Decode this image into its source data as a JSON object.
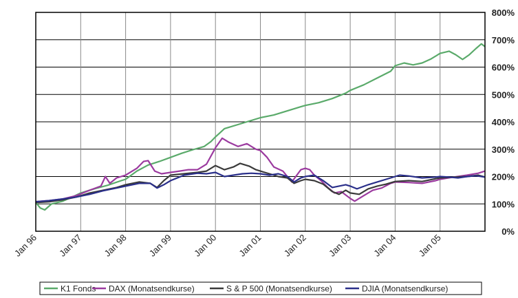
{
  "chart_data": {
    "type": "line",
    "x_labels": [
      "Jan 96",
      "Jan 97",
      "Jan 98",
      "Jan 99",
      "Jan 00",
      "Jan 01",
      "Jan 02",
      "Jan 03",
      "Jan 04",
      "Jan 05"
    ],
    "y_ticks": [
      "0%",
      "100%",
      "200%",
      "300%",
      "400%",
      "500%",
      "600%",
      "700%",
      "800%"
    ],
    "ylim": [
      0,
      800
    ],
    "grid": true,
    "legend_position": "bottom",
    "series": [
      {
        "name": "K1 Fonds",
        "color": "#5aaa6a",
        "points": [
          [
            1996.0,
            105
          ],
          [
            1996.1,
            85
          ],
          [
            1996.2,
            78
          ],
          [
            1996.35,
            100
          ],
          [
            1996.6,
            110
          ],
          [
            1996.85,
            128
          ],
          [
            1997.0,
            140
          ],
          [
            1997.3,
            155
          ],
          [
            1997.6,
            168
          ],
          [
            1997.9,
            185
          ],
          [
            1998.0,
            190
          ],
          [
            1998.25,
            220
          ],
          [
            1998.5,
            242
          ],
          [
            1998.75,
            255
          ],
          [
            1999.0,
            270
          ],
          [
            1999.25,
            285
          ],
          [
            1999.5,
            298
          ],
          [
            1999.75,
            310
          ],
          [
            1999.9,
            328
          ],
          [
            2000.0,
            345
          ],
          [
            2000.2,
            375
          ],
          [
            2000.5,
            390
          ],
          [
            2000.8,
            405
          ],
          [
            2001.0,
            415
          ],
          [
            2001.3,
            425
          ],
          [
            2001.6,
            440
          ],
          [
            2001.9,
            455
          ],
          [
            2002.0,
            460
          ],
          [
            2002.3,
            470
          ],
          [
            2002.6,
            485
          ],
          [
            2002.9,
            505
          ],
          [
            2003.0,
            515
          ],
          [
            2003.3,
            535
          ],
          [
            2003.6,
            560
          ],
          [
            2003.9,
            585
          ],
          [
            2004.0,
            605
          ],
          [
            2004.2,
            615
          ],
          [
            2004.4,
            608
          ],
          [
            2004.6,
            615
          ],
          [
            2004.8,
            630
          ],
          [
            2005.0,
            650
          ],
          [
            2005.2,
            658
          ],
          [
            2005.35,
            645
          ],
          [
            2005.5,
            628
          ],
          [
            2005.65,
            645
          ],
          [
            2005.8,
            668
          ],
          [
            2005.92,
            685
          ],
          [
            2006.0,
            675
          ]
        ]
      },
      {
        "name": "DAX (Monatsendkurse)",
        "color": "#9b3a9f",
        "points": [
          [
            1996.0,
            108
          ],
          [
            1996.3,
            112
          ],
          [
            1996.6,
            118
          ],
          [
            1996.9,
            130
          ],
          [
            1997.2,
            150
          ],
          [
            1997.45,
            165
          ],
          [
            1997.55,
            200
          ],
          [
            1997.65,
            175
          ],
          [
            1997.8,
            195
          ],
          [
            1998.0,
            205
          ],
          [
            1998.25,
            230
          ],
          [
            1998.4,
            255
          ],
          [
            1998.5,
            258
          ],
          [
            1998.65,
            220
          ],
          [
            1998.8,
            210
          ],
          [
            1999.0,
            215
          ],
          [
            1999.2,
            220
          ],
          [
            1999.4,
            225
          ],
          [
            1999.6,
            225
          ],
          [
            1999.8,
            245
          ],
          [
            2000.0,
            305
          ],
          [
            2000.15,
            340
          ],
          [
            2000.3,
            325
          ],
          [
            2000.5,
            310
          ],
          [
            2000.7,
            320
          ],
          [
            2000.9,
            300
          ],
          [
            2001.0,
            295
          ],
          [
            2001.15,
            270
          ],
          [
            2001.3,
            235
          ],
          [
            2001.5,
            220
          ],
          [
            2001.7,
            180
          ],
          [
            2001.9,
            225
          ],
          [
            2002.0,
            230
          ],
          [
            2002.1,
            225
          ],
          [
            2002.2,
            205
          ],
          [
            2002.35,
            185
          ],
          [
            2002.5,
            160
          ],
          [
            2002.65,
            140
          ],
          [
            2002.8,
            145
          ],
          [
            2003.0,
            120
          ],
          [
            2003.1,
            110
          ],
          [
            2003.3,
            130
          ],
          [
            2003.5,
            150
          ],
          [
            2003.7,
            158
          ],
          [
            2003.9,
            175
          ],
          [
            2004.0,
            180
          ],
          [
            2004.3,
            178
          ],
          [
            2004.6,
            175
          ],
          [
            2004.9,
            185
          ],
          [
            2005.0,
            190
          ],
          [
            2005.3,
            198
          ],
          [
            2005.6,
            205
          ],
          [
            2005.85,
            212
          ],
          [
            2006.0,
            220
          ]
        ]
      },
      {
        "name": "S & P 500 (Monatsendkurse)",
        "color": "#3a3a3a",
        "points": [
          [
            1996.0,
            105
          ],
          [
            1996.3,
            108
          ],
          [
            1996.6,
            115
          ],
          [
            1996.9,
            125
          ],
          [
            1997.2,
            140
          ],
          [
            1997.5,
            150
          ],
          [
            1997.8,
            160
          ],
          [
            1998.0,
            170
          ],
          [
            1998.3,
            180
          ],
          [
            1998.55,
            175
          ],
          [
            1998.7,
            160
          ],
          [
            1998.85,
            185
          ],
          [
            1999.0,
            205
          ],
          [
            1999.3,
            210
          ],
          [
            1999.6,
            215
          ],
          [
            1999.8,
            220
          ],
          [
            2000.0,
            240
          ],
          [
            2000.2,
            225
          ],
          [
            2000.4,
            235
          ],
          [
            2000.55,
            248
          ],
          [
            2000.75,
            238
          ],
          [
            2000.9,
            225
          ],
          [
            2001.0,
            220
          ],
          [
            2001.2,
            210
          ],
          [
            2001.4,
            200
          ],
          [
            2001.6,
            195
          ],
          [
            2001.75,
            175
          ],
          [
            2001.9,
            185
          ],
          [
            2002.0,
            190
          ],
          [
            2002.2,
            185
          ],
          [
            2002.4,
            172
          ],
          [
            2002.6,
            145
          ],
          [
            2002.75,
            135
          ],
          [
            2002.9,
            150
          ],
          [
            2003.0,
            140
          ],
          [
            2003.2,
            135
          ],
          [
            2003.4,
            155
          ],
          [
            2003.6,
            165
          ],
          [
            2003.8,
            172
          ],
          [
            2004.0,
            182
          ],
          [
            2004.3,
            185
          ],
          [
            2004.6,
            182
          ],
          [
            2004.9,
            192
          ],
          [
            2005.0,
            195
          ],
          [
            2005.3,
            198
          ],
          [
            2005.6,
            200
          ],
          [
            2005.85,
            205
          ],
          [
            2006.0,
            198
          ]
        ]
      },
      {
        "name": "DJIA (Monatsendkurse)",
        "color": "#2a2f8a",
        "points": [
          [
            1996.0,
            108
          ],
          [
            1996.3,
            112
          ],
          [
            1996.6,
            118
          ],
          [
            1996.9,
            125
          ],
          [
            1997.2,
            135
          ],
          [
            1997.5,
            148
          ],
          [
            1997.8,
            158
          ],
          [
            1998.0,
            165
          ],
          [
            1998.3,
            175
          ],
          [
            1998.55,
            175
          ],
          [
            1998.7,
            158
          ],
          [
            1998.85,
            170
          ],
          [
            1999.0,
            185
          ],
          [
            1999.3,
            205
          ],
          [
            1999.6,
            212
          ],
          [
            1999.8,
            210
          ],
          [
            2000.0,
            215
          ],
          [
            2000.2,
            200
          ],
          [
            2000.4,
            205
          ],
          [
            2000.6,
            210
          ],
          [
            2000.8,
            212
          ],
          [
            2001.0,
            210
          ],
          [
            2001.2,
            205
          ],
          [
            2001.4,
            210
          ],
          [
            2001.6,
            200
          ],
          [
            2001.75,
            180
          ],
          [
            2001.9,
            195
          ],
          [
            2002.0,
            200
          ],
          [
            2002.2,
            205
          ],
          [
            2002.4,
            185
          ],
          [
            2002.6,
            160
          ],
          [
            2002.75,
            165
          ],
          [
            2002.9,
            170
          ],
          [
            2003.0,
            165
          ],
          [
            2003.15,
            155
          ],
          [
            2003.4,
            170
          ],
          [
            2003.6,
            180
          ],
          [
            2003.8,
            190
          ],
          [
            2004.0,
            200
          ],
          [
            2004.1,
            205
          ],
          [
            2004.3,
            202
          ],
          [
            2004.6,
            195
          ],
          [
            2004.9,
            198
          ],
          [
            2005.0,
            200
          ],
          [
            2005.2,
            198
          ],
          [
            2005.4,
            195
          ],
          [
            2005.6,
            200
          ],
          [
            2005.8,
            203
          ],
          [
            2006.0,
            198
          ]
        ]
      }
    ]
  }
}
